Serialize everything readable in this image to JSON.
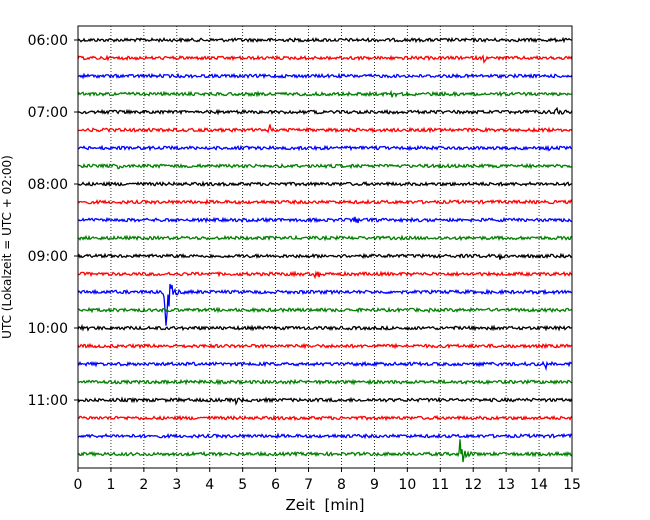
{
  "chart_data": {
    "type": "line",
    "title": "",
    "xlabel": "Zeit  [min]",
    "ylabel": "UTC (Lokalzeit = UTC + 02:00)",
    "xlim": [
      0,
      15
    ],
    "x_ticks": [
      "0",
      "1",
      "2",
      "3",
      "4",
      "5",
      "6",
      "7",
      "8",
      "9",
      "10",
      "11",
      "12",
      "13",
      "14",
      "15"
    ],
    "y_start": "06:00",
    "y_end": "11:45",
    "y_tick_labels": [
      "06:00",
      "07:00",
      "08:00",
      "09:00",
      "10:00",
      "11:00"
    ],
    "trace_interval_min": 15,
    "grid": "vertical dotted",
    "colors_cycle": [
      "#000000",
      "#ff0000",
      "#0000ff",
      "#008000"
    ],
    "series": [
      {
        "start": "06:00",
        "color": "#000000",
        "events": []
      },
      {
        "start": "06:15",
        "color": "#ff0000",
        "events": [
          {
            "x": 12.3,
            "amp": 0.3
          }
        ]
      },
      {
        "start": "06:30",
        "color": "#0000ff",
        "events": []
      },
      {
        "start": "06:45",
        "color": "#008000",
        "events": [
          {
            "x": 9.5,
            "amp": 0.25
          }
        ]
      },
      {
        "start": "07:00",
        "color": "#000000",
        "events": [
          {
            "x": 14.5,
            "amp": 0.4
          }
        ]
      },
      {
        "start": "07:15",
        "color": "#ff0000",
        "events": [
          {
            "x": 5.8,
            "amp": 0.45
          }
        ]
      },
      {
        "start": "07:30",
        "color": "#0000ff",
        "events": [
          {
            "x": 14.3,
            "amp": 0.2
          }
        ]
      },
      {
        "start": "07:45",
        "color": "#008000",
        "events": [
          {
            "x": 1.2,
            "amp": 0.2
          }
        ]
      },
      {
        "start": "08:00",
        "color": "#000000",
        "events": []
      },
      {
        "start": "08:15",
        "color": "#ff0000",
        "events": []
      },
      {
        "start": "08:30",
        "color": "#0000ff",
        "events": [
          {
            "x": 8.4,
            "amp": 0.6
          }
        ]
      },
      {
        "start": "08:45",
        "color": "#008000",
        "events": []
      },
      {
        "start": "09:00",
        "color": "#000000",
        "events": [
          {
            "x": 12.8,
            "amp": 0.3
          }
        ]
      },
      {
        "start": "09:15",
        "color": "#ff0000",
        "events": [
          {
            "x": 7.2,
            "amp": 0.5
          }
        ]
      },
      {
        "start": "09:30",
        "color": "#0000ff",
        "events": [
          {
            "x": 2.65,
            "amp": 4.8
          }
        ]
      },
      {
        "start": "09:45",
        "color": "#008000",
        "events": [
          {
            "x": 10.5,
            "amp": 0.25
          }
        ]
      },
      {
        "start": "10:00",
        "color": "#000000",
        "events": [
          {
            "x": 0.1,
            "amp": 0.3
          }
        ]
      },
      {
        "start": "10:15",
        "color": "#ff0000",
        "events": []
      },
      {
        "start": "10:30",
        "color": "#0000ff",
        "events": [
          {
            "x": 14.2,
            "amp": 0.45
          }
        ]
      },
      {
        "start": "10:45",
        "color": "#008000",
        "events": []
      },
      {
        "start": "11:00",
        "color": "#000000",
        "events": [
          {
            "x": 4.8,
            "amp": 0.3
          }
        ]
      },
      {
        "start": "11:15",
        "color": "#ff0000",
        "events": []
      },
      {
        "start": "11:30",
        "color": "#0000ff",
        "events": []
      },
      {
        "start": "11:45",
        "color": "#008000",
        "events": [
          {
            "x": 11.6,
            "amp": 1.6
          }
        ]
      }
    ]
  }
}
